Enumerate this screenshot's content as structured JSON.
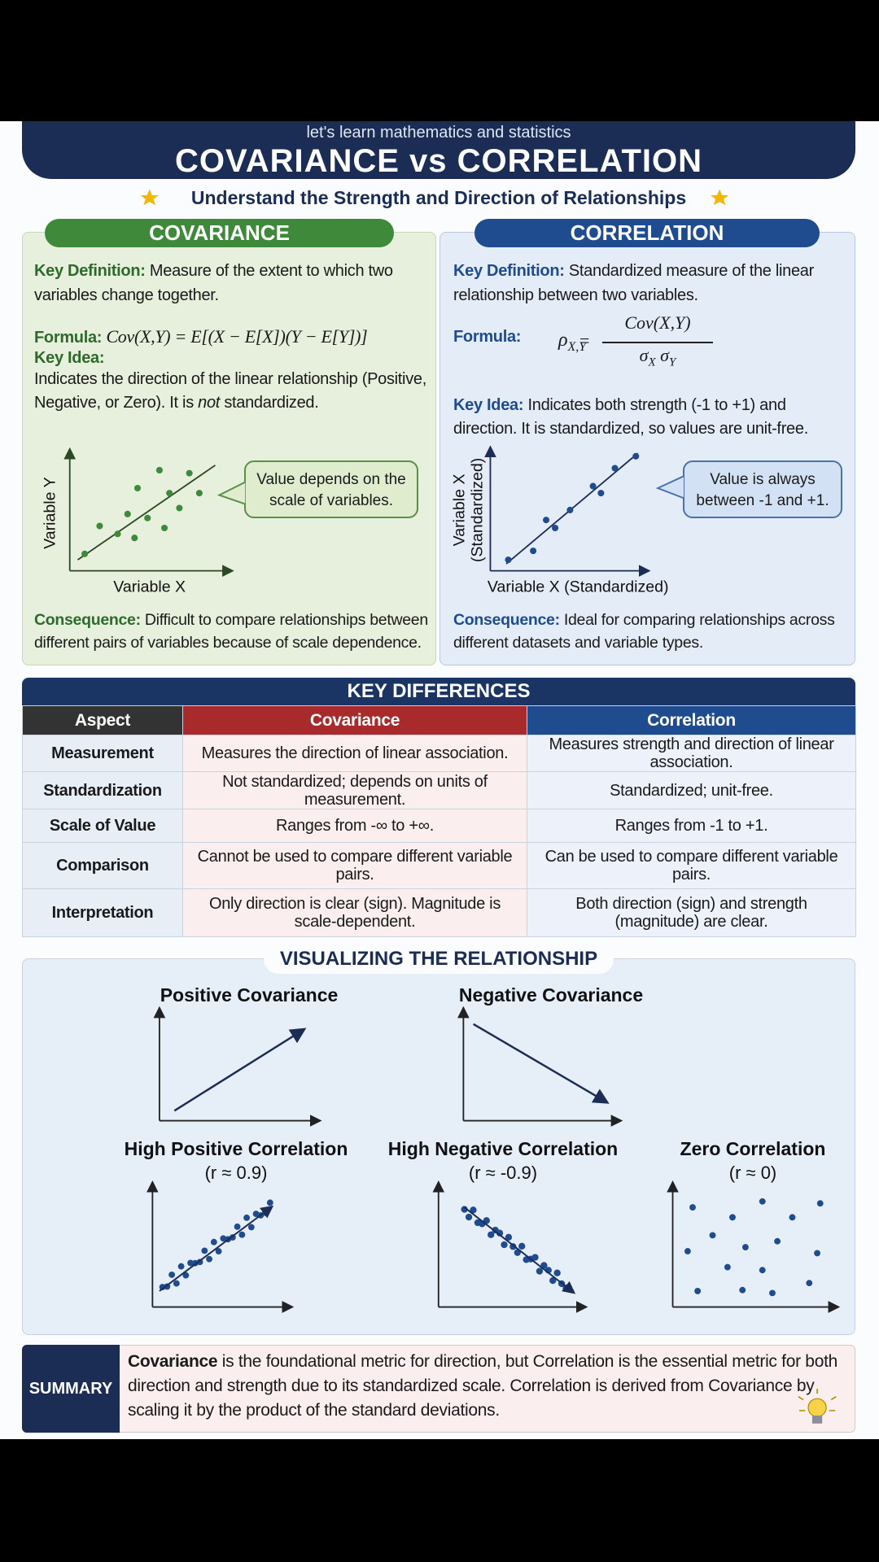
{
  "header": {
    "kicker": "let's learn mathematics and statistics",
    "title": "COVARIANCE vs CORRELATION",
    "tagline": "Understand the Strength and Direction of Relationships"
  },
  "covariance": {
    "heading": "COVARIANCE",
    "definition_label": "Key Definition:",
    "definition": "Measure of the extent to which two variables change together.",
    "formula_label": "Formula:",
    "formula": "Cov(X,Y) = E[(X − E[X])(Y − E[Y])]",
    "idea_label": "Key Idea:",
    "idea_parts": [
      "Indicates the direction of the linear relationship (Positive, Negative, or Zero). It is ",
      "not",
      " standardized."
    ],
    "y_axis": "Variable Y",
    "x_axis": "Variable X",
    "callout": "Value depends on the scale of variables.",
    "consequence_label": "Consequence:",
    "consequence": "Difficult to compare relationships between different pairs of variables because of scale dependence."
  },
  "correlation": {
    "heading": "CORRELATION",
    "definition_label": "Key Definition:",
    "definition": "Standardized measure of the linear relationship between two variables.",
    "formula_label": "Formula:",
    "formula": {
      "lhs": "ρ",
      "lhs_sub": "X,Y",
      "equals": "=",
      "numerator": "Cov(X,Y)",
      "denominator": [
        "σ",
        "X",
        "σ",
        "Y"
      ]
    },
    "idea_label": "Key Idea:",
    "idea": "Indicates both strength (-1 to +1) and direction. It is standardized, so values are unit-free.",
    "y_axis": [
      "Variable X",
      "(Standardized)"
    ],
    "x_axis": "Variable X (Standardized)",
    "callout": "Value is always between -1 and +1.",
    "consequence_label": "Consequence:",
    "consequence": "Ideal for comparing relationships across different datasets and variable types."
  },
  "key_differences": {
    "title": "KEY DIFFERENCES",
    "columns": [
      "Aspect",
      "Covariance",
      "Correlation"
    ],
    "rows": [
      [
        "Measurement",
        "Measures the direction of linear association.",
        "Measures strength and direction of linear association."
      ],
      [
        "Standardization",
        "Not standardized; depends on units of measurement.",
        "Standardized; unit-free."
      ],
      [
        "Scale of Value",
        "Ranges from -∞ to +∞.",
        "Ranges from -1 to +1."
      ],
      [
        "Comparison",
        "Cannot be used to compare different variable pairs.",
        "Can be used to compare different variable pairs."
      ],
      [
        "Interpretation",
        "Only direction is clear (sign). Magnitude is scale-dependent.",
        "Both direction (sign) and strength (magnitude) are clear."
      ]
    ]
  },
  "visualizing": {
    "title": "VISUALIZING THE RELATIONSHIP",
    "plots": [
      {
        "title": "Positive Covariance"
      },
      {
        "title": "Negative Covariance"
      },
      {
        "title": "High Positive Correlation",
        "subtitle": "(r ≈ 0.9)"
      },
      {
        "title": "High Negative Correlation",
        "subtitle": "(r ≈ -0.9)"
      },
      {
        "title": "Zero Correlation",
        "subtitle": "(r ≈ 0)"
      }
    ]
  },
  "summary": {
    "label": "SUMMARY",
    "lead": "Covariance",
    "text": " is the foundational metric for direction, but Correlation is the essential metric for both direction and strength due to its standardized scale. Correlation is derived from Covariance by scaling it by the product of the standard deviations."
  }
}
